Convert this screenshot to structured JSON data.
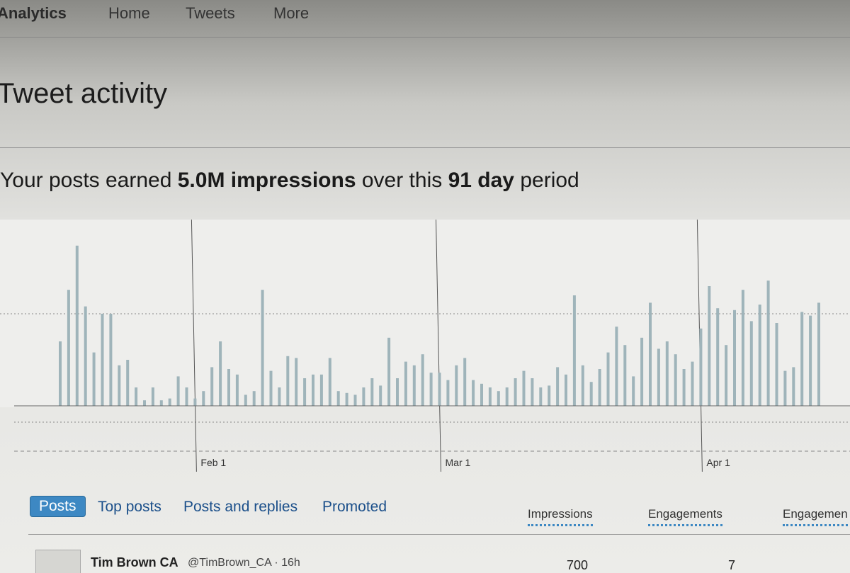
{
  "nav": {
    "brand": "Analytics",
    "items": [
      "Home",
      "Tweets",
      "More"
    ]
  },
  "header": {
    "title": "Tweet activity"
  },
  "summary": {
    "parts": [
      "Your posts earned",
      "5.0M impressions",
      "over this",
      "91 day",
      "period"
    ]
  },
  "chart_data": {
    "type": "bar",
    "color": "#9fb4ba",
    "values": [
      35,
      63,
      87,
      54,
      29,
      50,
      50,
      22,
      25,
      10,
      3,
      10,
      3,
      4,
      16,
      10,
      4,
      8,
      21,
      35,
      20,
      17,
      6,
      8,
      63,
      19,
      10,
      27,
      26,
      15,
      17,
      17,
      26,
      8,
      7,
      6,
      10,
      15,
      11,
      37,
      15,
      24,
      22,
      28,
      18,
      18,
      14,
      22,
      26,
      14,
      12,
      10,
      8,
      10,
      15,
      19,
      15,
      10,
      11,
      21,
      17,
      60,
      22,
      13,
      20,
      29,
      43,
      33,
      16,
      37,
      56,
      31,
      35,
      28,
      20,
      24,
      42,
      65,
      53,
      33,
      52,
      63,
      46,
      55,
      68,
      45,
      19,
      21,
      51,
      49,
      56
    ],
    "xlim": [
      0,
      90
    ],
    "ylim": [
      0,
      100
    ],
    "xticks": [
      {
        "value": 16,
        "label": "Feb 1"
      },
      {
        "value": 45,
        "label": "Mar 1"
      },
      {
        "value": 76,
        "label": "Apr 1"
      }
    ]
  },
  "tabs": [
    "Posts",
    "Top posts",
    "Posts and replies",
    "Promoted"
  ],
  "columns": [
    "Impressions",
    "Engagements",
    "Engagemen"
  ],
  "rows": [
    {
      "name": "Tim Brown CA",
      "handle": "@TimBrown_CA · 16h",
      "impressions": "700",
      "engagements": "7"
    }
  ]
}
